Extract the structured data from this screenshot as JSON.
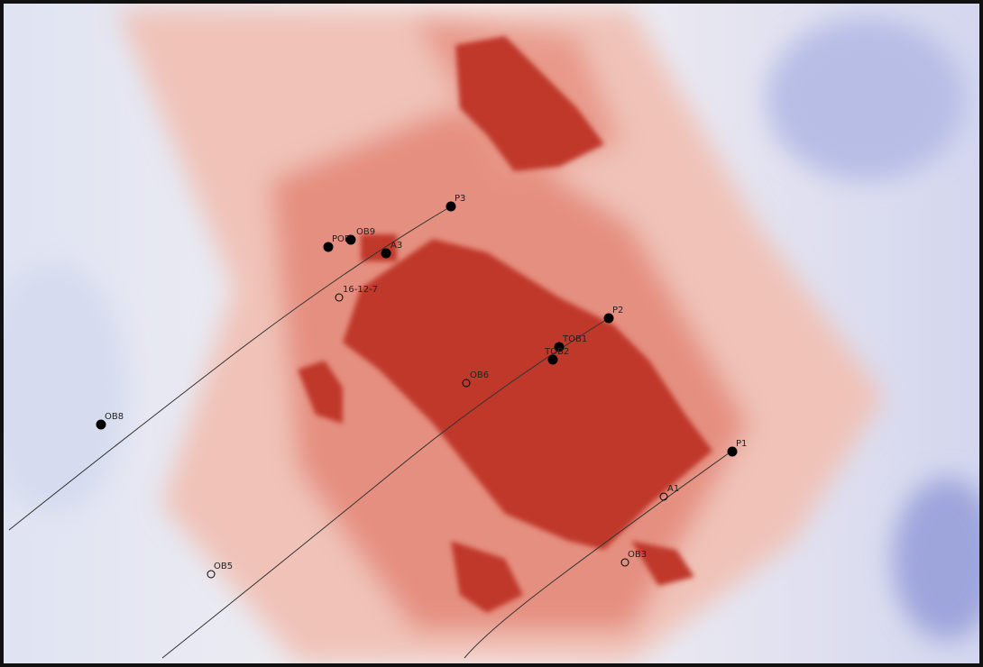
{
  "wells": [
    {
      "label": "P3",
      "type": "producer"
    },
    {
      "label": "POB",
      "type": "producer"
    },
    {
      "label": "OB9",
      "type": "producer"
    },
    {
      "label": "A3",
      "type": "producer"
    },
    {
      "label": "16-12-7",
      "type": "observation"
    },
    {
      "label": "P2",
      "type": "producer"
    },
    {
      "label": "TOB1",
      "type": "producer"
    },
    {
      "label": "TOB2",
      "type": "producer"
    },
    {
      "label": "OB6",
      "type": "observation"
    },
    {
      "label": "OB8",
      "type": "producer"
    },
    {
      "label": "P1",
      "type": "producer"
    },
    {
      "label": "A1",
      "type": "observation"
    },
    {
      "label": "OB3",
      "type": "observation"
    },
    {
      "label": "OB5",
      "type": "observation"
    }
  ]
}
